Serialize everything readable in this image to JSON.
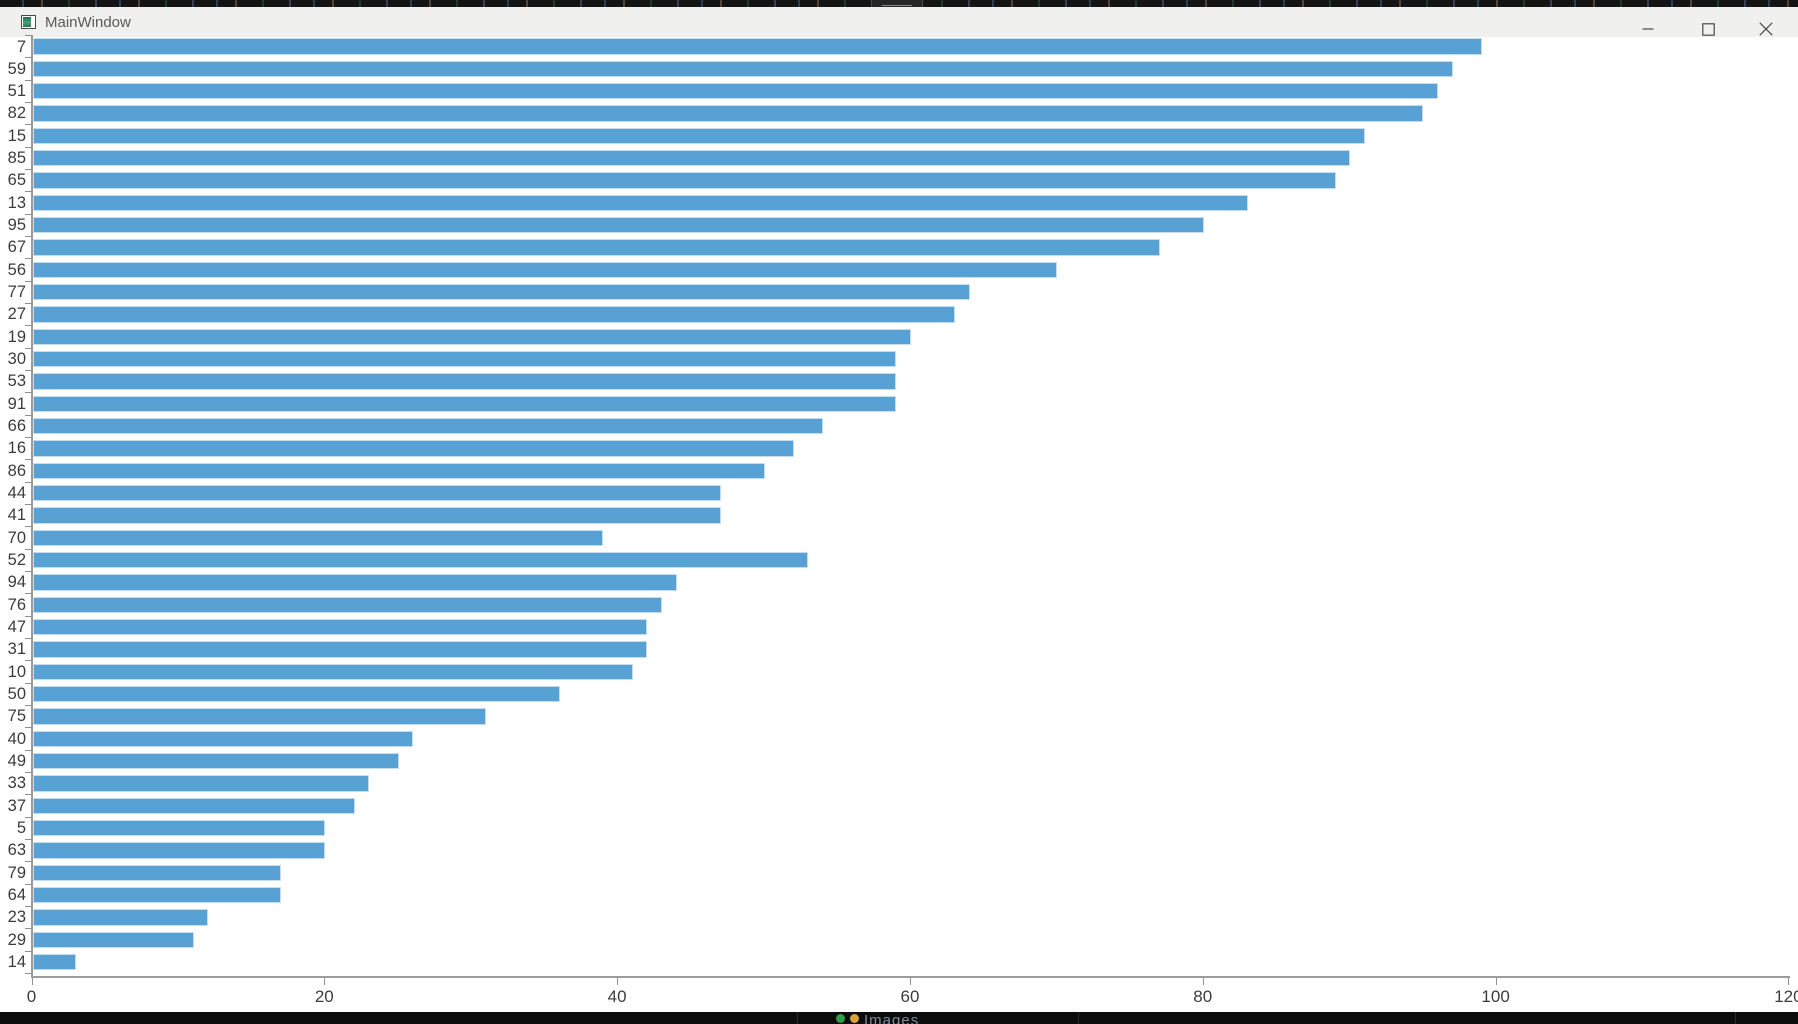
{
  "window": {
    "title": "MainWindow",
    "controls": [
      "minimize",
      "maximize",
      "close"
    ],
    "icons": {
      "app": "qt-app-window-icon",
      "minimize": "minimize-icon",
      "maximize": "maximize-icon",
      "close": "close-icon"
    }
  },
  "desktop": {
    "taskbar_item_label": "Images",
    "taskbar_icons": [
      "green-status-icon",
      "orange-icon"
    ]
  },
  "chart_data": {
    "type": "bar",
    "orientation": "horizontal",
    "title": "",
    "xlabel": "",
    "ylabel": "",
    "grid": false,
    "legend": null,
    "xlim": [
      0,
      120
    ],
    "x_ticks": [
      0,
      20,
      40,
      60,
      80,
      100,
      120
    ],
    "bar_color": "#58a1d4",
    "bar_edge_color": "#c6ddf0",
    "axis_color": "#9b9b9b",
    "categories": [
      "7",
      "59",
      "51",
      "82",
      "15",
      "85",
      "65",
      "13",
      "95",
      "67",
      "56",
      "77",
      "27",
      "19",
      "30",
      "53",
      "91",
      "66",
      "16",
      "86",
      "44",
      "41",
      "70",
      "52",
      "94",
      "76",
      "47",
      "31",
      "10",
      "50",
      "75",
      "40",
      "49",
      "33",
      "37",
      "5",
      "63",
      "79",
      "64",
      "23",
      "29",
      "14"
    ],
    "values": [
      99,
      97,
      96,
      95,
      91,
      90,
      89,
      83,
      80,
      77,
      70,
      64,
      63,
      60,
      59,
      59,
      59,
      54,
      52,
      50,
      47,
      47,
      39,
      53,
      44,
      43,
      42,
      42,
      41,
      36,
      31,
      26,
      25,
      23,
      22,
      20,
      20,
      17,
      17,
      12,
      11,
      3
    ]
  }
}
